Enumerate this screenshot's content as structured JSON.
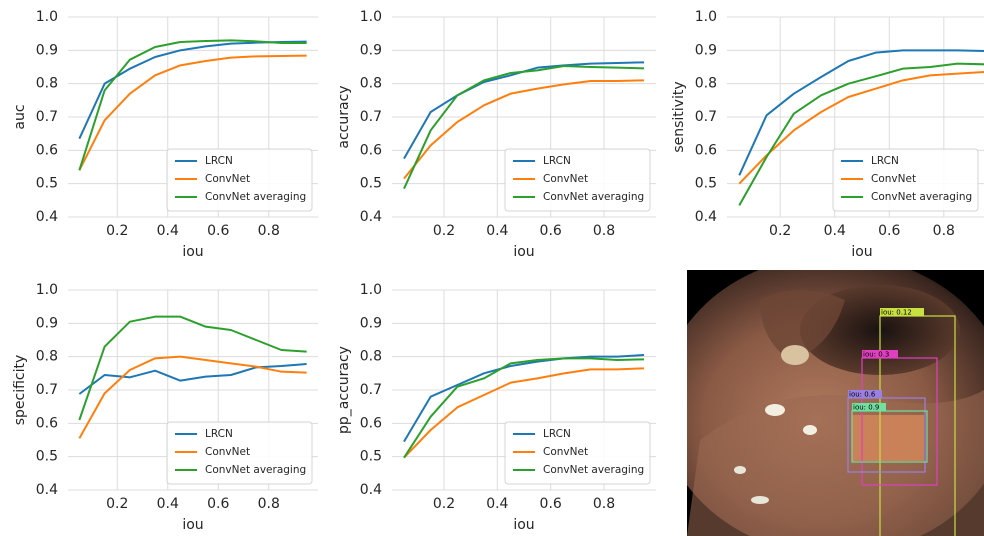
{
  "chart_data": [
    {
      "type": "line",
      "xlabel": "iou",
      "ylabel": "auc",
      "x": [
        0.05,
        0.15,
        0.25,
        0.35,
        0.45,
        0.55,
        0.65,
        0.75,
        0.85,
        0.95
      ],
      "series": [
        {
          "name": "LRCN",
          "color": "#1f77b4",
          "values": [
            0.635,
            0.8,
            0.845,
            0.88,
            0.9,
            0.912,
            0.92,
            0.923,
            0.925,
            0.926
          ]
        },
        {
          "name": "ConvNet",
          "color": "#ff7f0e",
          "values": [
            0.54,
            0.69,
            0.77,
            0.825,
            0.855,
            0.868,
            0.878,
            0.882,
            0.883,
            0.884
          ]
        },
        {
          "name": "ConvNet averaging",
          "color": "#2ca02c",
          "values": [
            0.54,
            0.78,
            0.872,
            0.91,
            0.925,
            0.928,
            0.93,
            0.927,
            0.922,
            0.922
          ]
        }
      ],
      "xlim": [
        0.005,
        0.995
      ],
      "ylim": [
        0.4,
        1.0
      ],
      "xticks": [
        0.2,
        0.4,
        0.6,
        0.8
      ],
      "yticks": [
        0.4,
        0.5,
        0.6,
        0.7,
        0.8,
        0.9,
        {
          "value": 1,
          "label": "1.0"
        }
      ],
      "grid": true,
      "legend": "lower right"
    },
    {
      "type": "line",
      "xlabel": "iou",
      "ylabel": "accuracy",
      "x": [
        0.05,
        0.15,
        0.25,
        0.35,
        0.45,
        0.55,
        0.65,
        0.75,
        0.85,
        0.95
      ],
      "series": [
        {
          "name": "LRCN",
          "color": "#1f77b4",
          "values": [
            0.575,
            0.715,
            0.765,
            0.805,
            0.825,
            0.848,
            0.855,
            0.86,
            0.862,
            0.864
          ]
        },
        {
          "name": "ConvNet",
          "color": "#ff7f0e",
          "values": [
            0.515,
            0.615,
            0.685,
            0.735,
            0.77,
            0.785,
            0.798,
            0.808,
            0.808,
            0.81
          ]
        },
        {
          "name": "ConvNet averaging",
          "color": "#2ca02c",
          "values": [
            0.485,
            0.66,
            0.765,
            0.81,
            0.832,
            0.84,
            0.853,
            0.85,
            0.848,
            0.846
          ]
        }
      ],
      "xlim": [
        0.005,
        0.995
      ],
      "ylim": [
        0.4,
        1.0
      ],
      "xticks": [
        0.2,
        0.4,
        0.6,
        0.8
      ],
      "yticks": [
        0.4,
        0.5,
        0.6,
        0.7,
        0.8,
        0.9,
        {
          "value": 1,
          "label": "1.0"
        }
      ],
      "grid": true,
      "legend": "lower right"
    },
    {
      "type": "line",
      "xlabel": "iou",
      "ylabel": "sensitivity",
      "x": [
        0.05,
        0.15,
        0.25,
        0.35,
        0.45,
        0.55,
        0.65,
        0.75,
        0.85,
        0.95
      ],
      "series": [
        {
          "name": "LRCN",
          "color": "#1f77b4",
          "values": [
            0.525,
            0.705,
            0.77,
            0.82,
            0.868,
            0.893,
            0.9,
            0.9,
            0.9,
            0.898
          ]
        },
        {
          "name": "ConvNet",
          "color": "#ff7f0e",
          "values": [
            0.5,
            0.585,
            0.66,
            0.715,
            0.76,
            0.785,
            0.81,
            0.825,
            0.83,
            0.835
          ]
        },
        {
          "name": "ConvNet averaging",
          "color": "#2ca02c",
          "values": [
            0.435,
            0.58,
            0.71,
            0.765,
            0.8,
            0.822,
            0.845,
            0.85,
            0.86,
            0.858
          ]
        }
      ],
      "xlim": [
        0.005,
        0.995
      ],
      "ylim": [
        0.4,
        1.0
      ],
      "xticks": [
        0.2,
        0.4,
        0.6,
        0.8
      ],
      "yticks": [
        0.4,
        0.5,
        0.6,
        0.7,
        0.8,
        0.9,
        {
          "value": 1,
          "label": "1.0"
        }
      ],
      "grid": true,
      "legend": "lower right"
    },
    {
      "type": "line",
      "xlabel": "iou",
      "ylabel": "specificity",
      "x": [
        0.05,
        0.15,
        0.25,
        0.35,
        0.45,
        0.55,
        0.65,
        0.75,
        0.85,
        0.95
      ],
      "series": [
        {
          "name": "LRCN",
          "color": "#1f77b4",
          "values": [
            0.688,
            0.745,
            0.738,
            0.758,
            0.728,
            0.74,
            0.745,
            0.768,
            0.772,
            0.778
          ]
        },
        {
          "name": "ConvNet",
          "color": "#ff7f0e",
          "values": [
            0.555,
            0.69,
            0.76,
            0.795,
            0.8,
            0.79,
            0.78,
            0.77,
            0.755,
            0.752
          ]
        },
        {
          "name": "ConvNet averaging",
          "color": "#2ca02c",
          "values": [
            0.61,
            0.83,
            0.905,
            0.92,
            0.92,
            0.89,
            0.88,
            0.85,
            0.82,
            0.815
          ]
        }
      ],
      "xlim": [
        0.005,
        0.995
      ],
      "ylim": [
        0.4,
        1.0
      ],
      "xticks": [
        0.2,
        0.4,
        0.6,
        0.8
      ],
      "yticks": [
        0.4,
        0.5,
        0.6,
        0.7,
        0.8,
        0.9,
        {
          "value": 1,
          "label": "1.0"
        }
      ],
      "grid": true,
      "legend": "lower right"
    },
    {
      "type": "line",
      "xlabel": "iou",
      "ylabel": "pp_accuracy",
      "x": [
        0.05,
        0.15,
        0.25,
        0.35,
        0.45,
        0.55,
        0.65,
        0.75,
        0.85,
        0.95
      ],
      "series": [
        {
          "name": "LRCN",
          "color": "#1f77b4",
          "values": [
            0.545,
            0.68,
            0.715,
            0.75,
            0.772,
            0.785,
            0.795,
            0.8,
            0.8,
            0.805
          ]
        },
        {
          "name": "ConvNet",
          "color": "#ff7f0e",
          "values": [
            0.497,
            0.58,
            0.648,
            0.685,
            0.722,
            0.735,
            0.75,
            0.762,
            0.762,
            0.765
          ]
        },
        {
          "name": "ConvNet averaging",
          "color": "#2ca02c",
          "values": [
            0.497,
            0.62,
            0.71,
            0.735,
            0.78,
            0.79,
            0.795,
            0.795,
            0.79,
            0.792
          ]
        }
      ],
      "xlim": [
        0.005,
        0.995
      ],
      "ylim": [
        0.4,
        1.0
      ],
      "xticks": [
        0.2,
        0.4,
        0.6,
        0.8
      ],
      "yticks": [
        0.4,
        0.5,
        0.6,
        0.7,
        0.8,
        0.9,
        {
          "value": 1,
          "label": "1.0"
        }
      ],
      "grid": true,
      "legend": "lower right"
    }
  ],
  "image": {
    "labels": [
      "iou: 0.12",
      "iou: 0.3",
      "iou: 0.6",
      "iou: 0.9"
    ]
  }
}
